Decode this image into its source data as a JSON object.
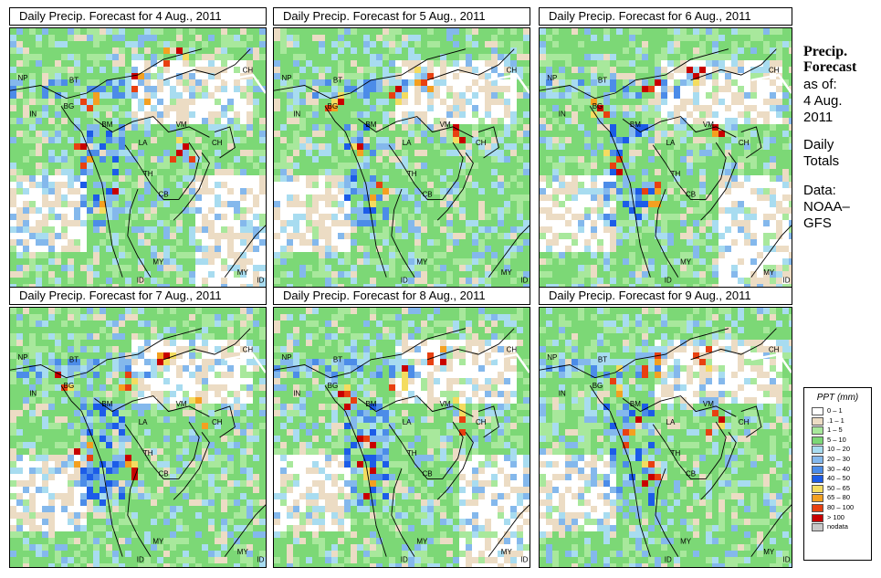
{
  "panels": [
    {
      "title": "Daily Precip. Forecast for  4 Aug., 2011",
      "variant": 0
    },
    {
      "title": "Daily Precip. Forecast for  5 Aug., 2011",
      "variant": 1
    },
    {
      "title": "Daily Precip. Forecast for  6 Aug., 2011",
      "variant": 2
    },
    {
      "title": "Daily Precip. Forecast for  7 Aug., 2011",
      "variant": 3
    },
    {
      "title": "Daily Precip. Forecast for  8 Aug., 2011",
      "variant": 4
    },
    {
      "title": "Daily Precip. Forecast for  9 Aug., 2011",
      "variant": 5
    }
  ],
  "country_labels": [
    "CH",
    "NP",
    "BT",
    "BG",
    "IN",
    "BM",
    "VM",
    "LA",
    "TH",
    "CB",
    "MY",
    "ID",
    "MY",
    "ID",
    "CH"
  ],
  "side": {
    "title_line1": "Precip.",
    "title_line2": "Forecast",
    "asof": "as of:",
    "date_line1": "4 Aug.",
    "date_line2": "2011",
    "totals_line1": "Daily",
    "totals_line2": "Totals",
    "data_line1": "Data:",
    "data_line2": "NOAA–",
    "data_line3": "GFS"
  },
  "legend": {
    "title": "PPT (mm)",
    "items": [
      {
        "label": "0 – 1",
        "color": "#ffffff"
      },
      {
        "label": ".1 – 1",
        "color": "#ecdcc4"
      },
      {
        "label": "1 – 5",
        "color": "#a8e89c"
      },
      {
        "label": "5 – 10",
        "color": "#7cd876"
      },
      {
        "label": "10 – 20",
        "color": "#a8dcf0"
      },
      {
        "label": "20 – 30",
        "color": "#84b8ec"
      },
      {
        "label": "30 – 40",
        "color": "#4c8ce8"
      },
      {
        "label": "40 – 50",
        "color": "#1c5ce8"
      },
      {
        "label": "50 – 65",
        "color": "#f4dc60"
      },
      {
        "label": "65 – 80",
        "color": "#f4a020"
      },
      {
        "label": "80 – 100",
        "color": "#e84010"
      },
      {
        "label": "> 100",
        "color": "#c80000"
      },
      {
        "label": "nodata",
        "color": "#c8c8c8"
      }
    ]
  }
}
